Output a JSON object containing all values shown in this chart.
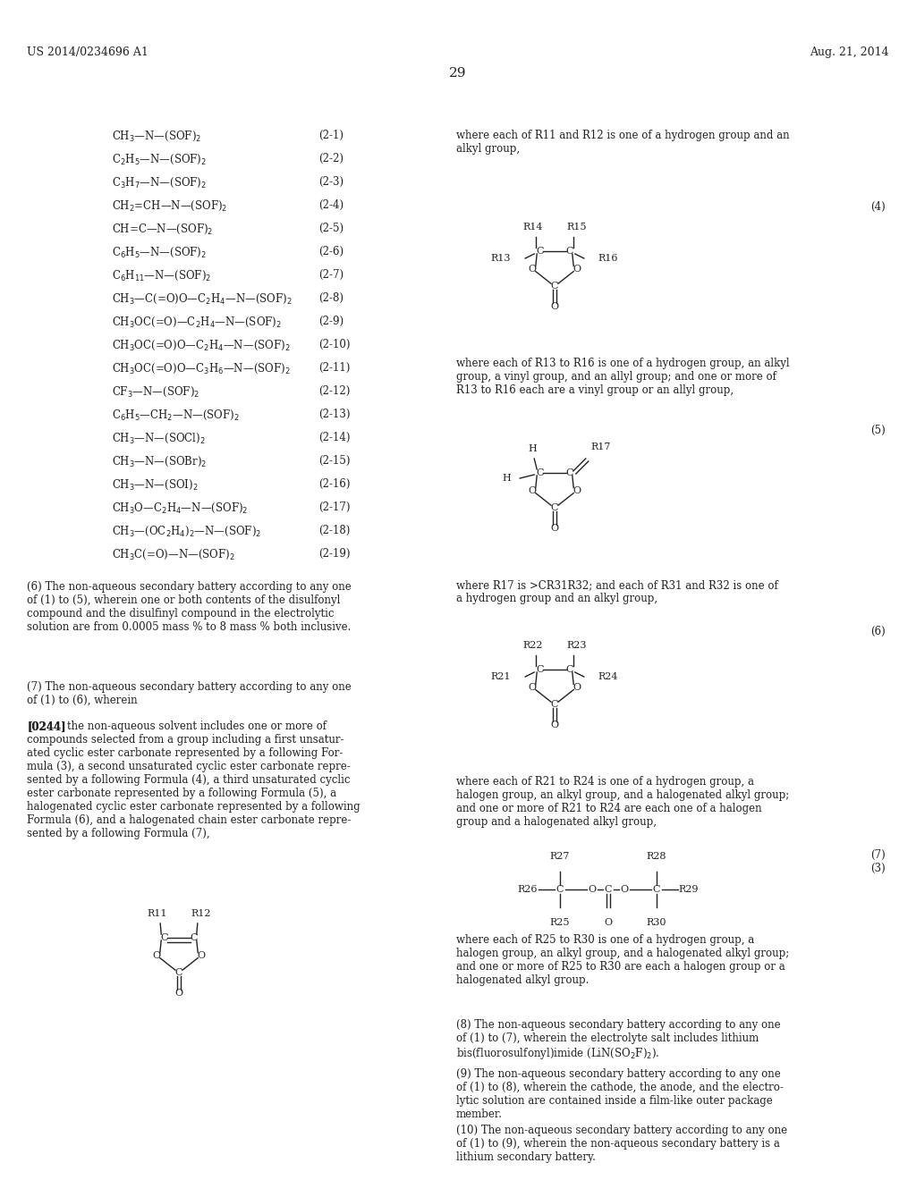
{
  "bg_color": "#ffffff",
  "header_left": "US 2014/0234696 A1",
  "header_right": "Aug. 21, 2014",
  "page_number": "29",
  "left_formulas": [
    {
      "text": "CH$_3$—N—(SOF)$_2$",
      "num": "(2-1)"
    },
    {
      "text": "C$_2$H$_5$—N—(SOF)$_2$",
      "num": "(2-2)"
    },
    {
      "text": "C$_3$H$_7$—N—(SOF)$_2$",
      "num": "(2-3)"
    },
    {
      "text": "CH$_2$=CH—N—(SOF)$_2$",
      "num": "(2-4)"
    },
    {
      "text": "CH=C—N—(SOF)$_2$",
      "num": "(2-5)"
    },
    {
      "text": "C$_6$H$_5$—N—(SOF)$_2$",
      "num": "(2-6)"
    },
    {
      "text": "C$_6$H$_{11}$—N—(SOF)$_2$",
      "num": "(2-7)"
    },
    {
      "text": "CH$_3$—C(=O)O—C$_2$H$_4$—N—(SOF)$_2$",
      "num": "(2-8)"
    },
    {
      "text": "CH$_3$OC(=O)—C$_2$H$_4$—N—(SOF)$_2$",
      "num": "(2-9)"
    },
    {
      "text": "CH$_3$OC(=O)O—C$_2$H$_4$—N—(SOF)$_2$",
      "num": "(2-10)"
    },
    {
      "text": "CH$_3$OC(=O)O—C$_3$H$_6$—N—(SOF)$_2$",
      "num": "(2-11)"
    },
    {
      "text": "CF$_3$—N—(SOF)$_2$",
      "num": "(2-12)"
    },
    {
      "text": "C$_6$H$_5$—CH$_2$—N—(SOF)$_2$",
      "num": "(2-13)"
    },
    {
      "text": "CH$_3$—N—(SOCl)$_2$",
      "num": "(2-14)"
    },
    {
      "text": "CH$_3$—N—(SOBr)$_2$",
      "num": "(2-15)"
    },
    {
      "text": "CH$_3$—N—(SOI)$_2$",
      "num": "(2-16)"
    },
    {
      "text": "CH$_3$O—C$_2$H$_4$—N—(SOF)$_2$",
      "num": "(2-17)"
    },
    {
      "text": "CH$_3$—(OC$_2$H$_4$)$_2$—N—(SOF)$_2$",
      "num": "(2-18)"
    },
    {
      "text": "CH$_3$C(=O)—N—(SOF)$_2$",
      "num": "(2-19)"
    }
  ],
  "right_text_1": "where each of R11 and R12 is one of a hydrogen group and an\nalkyl group,",
  "right_text_4": "where each of R13 to R16 is one of a hydrogen group, an alkyl\ngroup, a vinyl group, and an allyl group; and one or more of\nR13 to R16 each are a vinyl group or an allyl group,",
  "right_text_5": "where R17 is >CR31R32; and each of R31 and R32 is one of\na hydrogen group and an alkyl group,",
  "right_text_6": "where each of R21 to R24 is one of a hydrogen group, a\nhalogen group, an alkyl group, and a halogenated alkyl group;\nand one or more of R21 to R24 are each one of a halogen\ngroup and a halogenated alkyl group,",
  "right_text_7": "where each of R25 to R30 is one of a hydrogen group, a\nhalogen group, an alkyl group, and a halogenated alkyl group;\nand one or more of R25 to R30 are each a halogen group or a\nhalogenated alkyl group.",
  "left_para_6": "(6) The non-aqueous secondary battery according to any one\nof (1) to (5), wherein one or both contents of the disulfonyl\ncompound and the disulfinyl compound in the electrolytic\nsolution are from 0.0005 mass % to 8 mass % both inclusive.",
  "left_para_7": "(7) The non-aqueous secondary battery according to any one\nof (1) to (6), wherein",
  "left_para_0244_bold": "[0244]",
  "left_para_0244_rest": "   the non-aqueous solvent includes one or more of\ncompounds selected from a group including a first unsatur-\nated cyclic ester carbonate represented by a following For-\nmula (3), a second unsaturated cyclic ester carbonate repre-\nsented by a following Formula (4), a third unsaturated cyclic\nester carbonate represented by a following Formula (5), a\nhalogenated cyclic ester carbonate represented by a following\nFormula (6), and a halogenated chain ester carbonate repre-\nsented by a following Formula (7),",
  "right_para_8": "(8) The non-aqueous secondary battery according to any one\nof (1) to (7), wherein the electrolyte salt includes lithium\nbis(fluorosulfonyl)imide (LiN(SO$_2$F)$_2$).",
  "right_para_9": "(9) The non-aqueous secondary battery according to any one\nof (1) to (8), wherein the cathode, the anode, and the electro-\nlytic solution are contained inside a film-like outer package\nmember.",
  "right_para_10": "(10) The non-aqueous secondary battery according to any one\nof (1) to (9), wherein the non-aqueous secondary battery is a\nlithium secondary battery."
}
